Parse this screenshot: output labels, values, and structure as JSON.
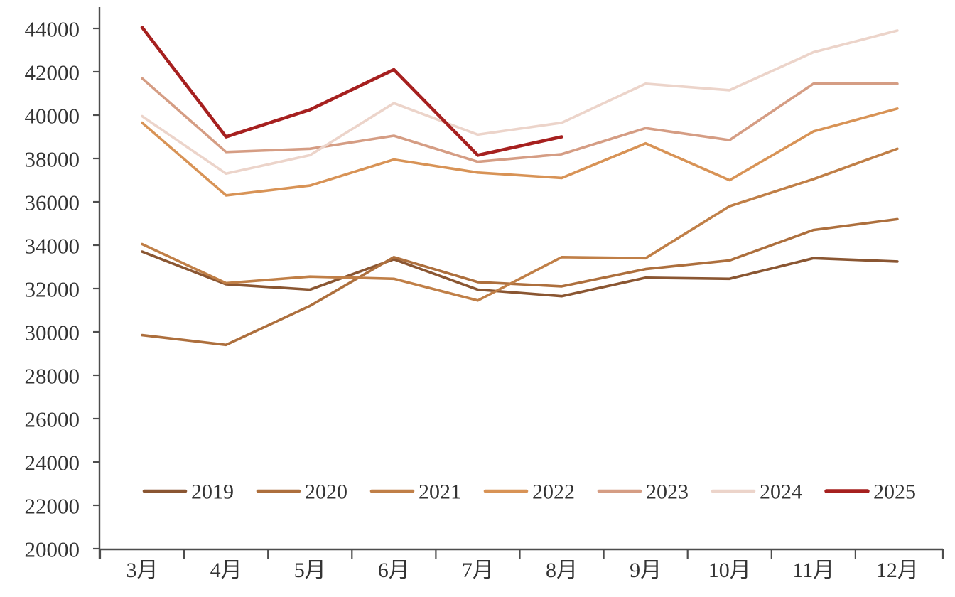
{
  "chart_data": {
    "type": "line",
    "title": "",
    "categories": [
      "3月",
      "4月",
      "5月",
      "6月",
      "7月",
      "8月",
      "9月",
      "10月",
      "11月",
      "12月"
    ],
    "series": [
      {
        "name": "2019",
        "color": "#8a5632",
        "width": 3.6,
        "values": [
          33700,
          32200,
          31950,
          33350,
          31950,
          31650,
          32500,
          32450,
          33400,
          33250
        ]
      },
      {
        "name": "2020",
        "color": "#ad6f3d",
        "width": 3.6,
        "values": [
          29850,
          29400,
          31200,
          33450,
          32300,
          32100,
          32900,
          33300,
          34700,
          35200
        ]
      },
      {
        "name": "2021",
        "color": "#c07f47",
        "width": 3.6,
        "values": [
          34050,
          32250,
          32550,
          32450,
          31450,
          33450,
          33400,
          35800,
          37050,
          38450
        ]
      },
      {
        "name": "2022",
        "color": "#d89356",
        "width": 3.6,
        "values": [
          39650,
          36300,
          36750,
          37950,
          37350,
          37100,
          38700,
          37000,
          39250,
          40300
        ]
      },
      {
        "name": "2023",
        "color": "#d59d84",
        "width": 3.6,
        "values": [
          41700,
          38300,
          38450,
          39050,
          37850,
          38200,
          39400,
          38850,
          41450,
          41450
        ]
      },
      {
        "name": "2024",
        "color": "#ecd4ca",
        "width": 3.6,
        "values": [
          39950,
          37300,
          38150,
          40550,
          39100,
          39650,
          41450,
          41150,
          42900,
          43900
        ]
      },
      {
        "name": "2025",
        "color": "#a6201f",
        "width": 4.6,
        "values": [
          44050,
          39000,
          40250,
          42100,
          38150,
          39000
        ]
      }
    ],
    "ylim": [
      20000,
      44000
    ],
    "ytick_step": 2000,
    "yticks": [
      20000,
      22000,
      24000,
      26000,
      28000,
      30000,
      32000,
      34000,
      36000,
      38000,
      40000,
      42000,
      44000
    ],
    "xlabel": "",
    "ylabel": "",
    "grid": false,
    "legend_position": "bottom-inside",
    "legend_labels": [
      "2019",
      "2020",
      "2021",
      "2022",
      "2023",
      "2024",
      "2025"
    ],
    "axis_color": "#4d4d4d",
    "label_color": "#333333"
  }
}
